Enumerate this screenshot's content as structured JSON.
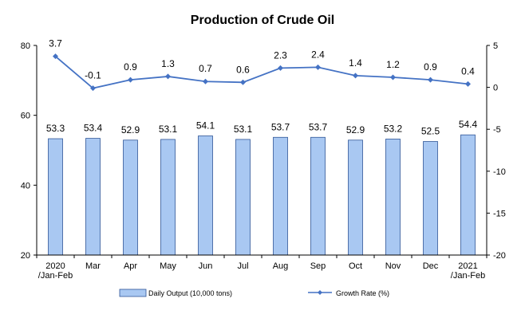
{
  "chart_data": {
    "type": "bar+line",
    "title": "Production of Crude Oil",
    "categories": [
      [
        "2020",
        "/Jan-Feb"
      ],
      [
        "Mar"
      ],
      [
        "Apr"
      ],
      [
        "May"
      ],
      [
        "Jun"
      ],
      [
        "Jul"
      ],
      [
        "Aug"
      ],
      [
        "Sep"
      ],
      [
        "Oct"
      ],
      [
        "Nov"
      ],
      [
        "Dec"
      ],
      [
        "2021",
        "/Jan-Feb"
      ]
    ],
    "series": [
      {
        "name": "Daily Output (10,000 tons)",
        "type": "bar",
        "axis": "left",
        "values": [
          53.3,
          53.4,
          52.9,
          53.1,
          54.1,
          53.1,
          53.7,
          53.7,
          52.9,
          53.2,
          52.5,
          54.4
        ],
        "labels": [
          "53.3",
          "53.4",
          "52.9",
          "53.1",
          "54.1",
          "53.1",
          "53.7",
          "53.7",
          "52.9",
          "53.2",
          "52.5",
          "54.4"
        ]
      },
      {
        "name": "Growth Rate (%)",
        "type": "line",
        "axis": "right",
        "values": [
          3.7,
          -0.1,
          0.9,
          1.3,
          0.7,
          0.6,
          2.3,
          2.4,
          1.4,
          1.2,
          0.9,
          0.4
        ],
        "labels": [
          "3.7",
          "-0.1",
          "0.9",
          "1.3",
          "0.7",
          "0.6",
          "2.3",
          "2.4",
          "1.4",
          "1.2",
          "0.9",
          "0.4"
        ]
      }
    ],
    "y_left": {
      "ylim": [
        20,
        80
      ],
      "ticks": [
        "20",
        "40",
        "60",
        "80"
      ]
    },
    "y_right": {
      "ylim": [
        -20,
        5
      ],
      "ticks": [
        "-20",
        "-15",
        "-10",
        "-5",
        "0",
        "5"
      ]
    },
    "grid": false,
    "legend_position": "bottom",
    "colors": {
      "bar_fill": "#a9c8f2",
      "bar_stroke": "#2f5597",
      "line": "#4472c4",
      "axis": "#000000"
    }
  }
}
